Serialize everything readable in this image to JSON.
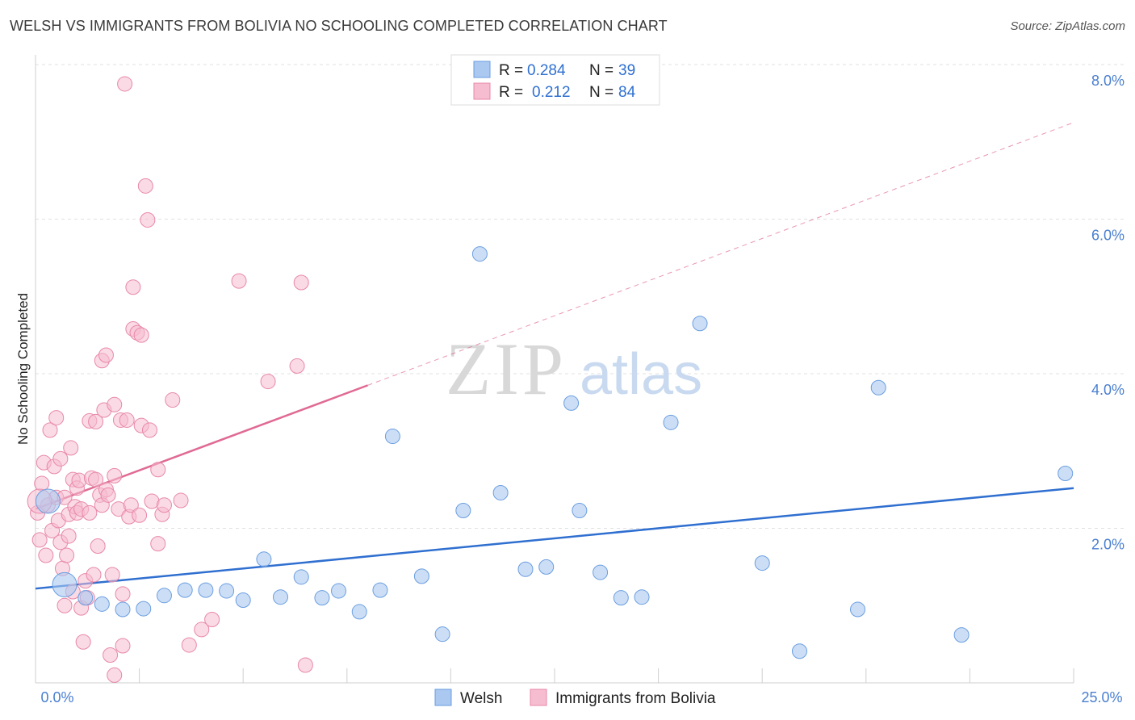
{
  "title": "WELSH VS IMMIGRANTS FROM BOLIVIA NO SCHOOLING COMPLETED CORRELATION CHART",
  "source": "Source: ZipAtlas.com",
  "colors": {
    "welsh_fill": "#aac8f0",
    "welsh_stroke": "#6a9ee0",
    "welsh_line": "#2f6fd0",
    "bolivia_fill": "#f6bcd0",
    "bolivia_stroke": "#e888a8",
    "bolivia_line": "#e06a94",
    "grid": "#e0e0e0",
    "tick_text": "#4a7fd0"
  },
  "watermark": {
    "zip": "ZIP",
    "atlas": "atlas"
  },
  "legend": {
    "rows": [
      {
        "r_label": "R =",
        "r_value": "0.284",
        "n_label": "N =",
        "n_value": "39"
      },
      {
        "r_label": "R =",
        "r_value": "0.212",
        "n_label": "N =",
        "n_value": "84"
      }
    ]
  },
  "chart_data": {
    "type": "scatter",
    "title": "WELSH VS IMMIGRANTS FROM BOLIVIA NO SCHOOLING COMPLETED CORRELATION CHART",
    "xlabel": "",
    "ylabel": "No Schooling Completed",
    "xlim": [
      0,
      25
    ],
    "ylim": [
      0,
      8
    ],
    "x_tick_labels": [
      "0.0%",
      "25.0%"
    ],
    "y_ticks": [
      2,
      4,
      6,
      8
    ],
    "y_tick_labels": [
      "2.0%",
      "4.0%",
      "6.0%",
      "8.0%"
    ],
    "grid": true,
    "legend_position": "top-center",
    "series": [
      {
        "name": "Welsh",
        "r": 0.284,
        "n": 39,
        "trend": {
          "x": [
            0,
            25
          ],
          "y": [
            1.22,
            2.52
          ]
        },
        "points": [
          [
            0.3,
            2.35
          ],
          [
            0.7,
            1.27
          ],
          [
            1.2,
            1.1
          ],
          [
            1.6,
            1.02
          ],
          [
            2.1,
            0.95
          ],
          [
            2.6,
            0.96
          ],
          [
            3.1,
            1.13
          ],
          [
            3.6,
            1.2
          ],
          [
            4.1,
            1.2
          ],
          [
            4.6,
            1.19
          ],
          [
            5.0,
            1.07
          ],
          [
            5.5,
            1.6
          ],
          [
            5.9,
            1.11
          ],
          [
            6.4,
            1.37
          ],
          [
            6.9,
            1.1
          ],
          [
            7.3,
            1.19
          ],
          [
            7.8,
            0.92
          ],
          [
            8.3,
            1.2
          ],
          [
            8.6,
            3.19
          ],
          [
            9.3,
            1.38
          ],
          [
            9.8,
            0.63
          ],
          [
            10.3,
            2.23
          ],
          [
            10.7,
            5.55
          ],
          [
            11.2,
            2.46
          ],
          [
            11.8,
            1.47
          ],
          [
            12.3,
            1.5
          ],
          [
            12.9,
            3.62
          ],
          [
            13.1,
            2.23
          ],
          [
            13.6,
            1.43
          ],
          [
            14.1,
            1.1
          ],
          [
            14.6,
            1.11
          ],
          [
            15.3,
            3.37
          ],
          [
            16.0,
            4.65
          ],
          [
            17.5,
            1.55
          ],
          [
            18.4,
            0.41
          ],
          [
            19.8,
            0.95
          ],
          [
            20.3,
            3.82
          ],
          [
            22.3,
            0.62
          ],
          [
            24.8,
            2.71
          ]
        ]
      },
      {
        "name": "Immigrants from Bolivia",
        "r": 0.212,
        "n": 84,
        "trend": {
          "x": [
            0,
            8.0
          ],
          "y": [
            2.25,
            3.85
          ]
        },
        "trend_extended": {
          "x": [
            8.0,
            25.0
          ],
          "y": [
            3.85,
            7.25
          ]
        },
        "points": [
          [
            0.05,
            2.2
          ],
          [
            0.1,
            1.85
          ],
          [
            0.15,
            2.58
          ],
          [
            0.2,
            2.85
          ],
          [
            0.25,
            1.65
          ],
          [
            0.3,
            2.3
          ],
          [
            0.35,
            3.27
          ],
          [
            0.4,
            1.97
          ],
          [
            0.45,
            2.8
          ],
          [
            0.5,
            2.4
          ],
          [
            0.5,
            3.43
          ],
          [
            0.55,
            2.1
          ],
          [
            0.6,
            1.82
          ],
          [
            0.6,
            2.9
          ],
          [
            0.65,
            1.48
          ],
          [
            0.7,
            1.0
          ],
          [
            0.7,
            2.4
          ],
          [
            0.75,
            1.65
          ],
          [
            0.8,
            1.9
          ],
          [
            0.8,
            2.18
          ],
          [
            0.85,
            3.04
          ],
          [
            0.9,
            2.63
          ],
          [
            0.9,
            1.18
          ],
          [
            0.95,
            2.28
          ],
          [
            1.0,
            2.52
          ],
          [
            1.0,
            2.2
          ],
          [
            1.05,
            2.62
          ],
          [
            1.1,
            0.97
          ],
          [
            1.1,
            2.25
          ],
          [
            1.15,
            0.53
          ],
          [
            1.2,
            1.32
          ],
          [
            1.25,
            1.1
          ],
          [
            1.3,
            3.39
          ],
          [
            1.3,
            2.2
          ],
          [
            1.35,
            2.65
          ],
          [
            1.4,
            1.4
          ],
          [
            1.45,
            2.63
          ],
          [
            1.45,
            3.38
          ],
          [
            1.5,
            1.77
          ],
          [
            1.55,
            2.43
          ],
          [
            1.6,
            4.17
          ],
          [
            1.6,
            2.3
          ],
          [
            1.65,
            3.53
          ],
          [
            1.7,
            2.5
          ],
          [
            1.7,
            4.24
          ],
          [
            1.75,
            2.43
          ],
          [
            1.8,
            0.36
          ],
          [
            1.85,
            1.4
          ],
          [
            1.9,
            0.1
          ],
          [
            1.9,
            2.68
          ],
          [
            1.9,
            3.6
          ],
          [
            2.0,
            2.25
          ],
          [
            2.05,
            3.4
          ],
          [
            2.1,
            1.15
          ],
          [
            2.1,
            0.48
          ],
          [
            2.15,
            7.75
          ],
          [
            2.2,
            3.4
          ],
          [
            2.25,
            2.15
          ],
          [
            2.3,
            2.3
          ],
          [
            2.35,
            5.12
          ],
          [
            2.35,
            4.58
          ],
          [
            2.45,
            4.53
          ],
          [
            2.5,
            2.17
          ],
          [
            2.55,
            3.33
          ],
          [
            2.55,
            4.5
          ],
          [
            2.65,
            6.43
          ],
          [
            2.7,
            5.99
          ],
          [
            2.75,
            3.27
          ],
          [
            2.8,
            2.35
          ],
          [
            2.95,
            2.76
          ],
          [
            2.95,
            1.8
          ],
          [
            3.05,
            2.18
          ],
          [
            3.1,
            2.3
          ],
          [
            3.3,
            3.66
          ],
          [
            3.5,
            2.36
          ],
          [
            3.7,
            0.49
          ],
          [
            4.0,
            0.69
          ],
          [
            4.25,
            0.82
          ],
          [
            4.9,
            5.2
          ],
          [
            5.6,
            3.9
          ],
          [
            6.3,
            4.1
          ],
          [
            6.4,
            5.18
          ],
          [
            6.5,
            0.23
          ],
          [
            0.1,
            2.35
          ]
        ]
      }
    ]
  }
}
